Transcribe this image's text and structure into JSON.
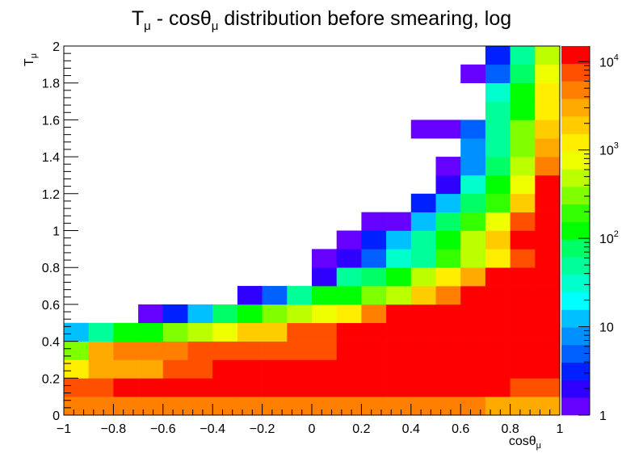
{
  "chart_data": {
    "type": "heatmap",
    "title": "T_μ - cosθ_μ distribution before smearing, log",
    "title_parts": {
      "main1": "T",
      "sub1": "μ",
      "main2": " - cosθ",
      "sub2": "μ",
      "main3": " distribution before smearing, log"
    },
    "xlabel": {
      "main": "cosθ",
      "sub": "μ"
    },
    "ylabel": {
      "main": "T",
      "sub": "μ"
    },
    "xlim": [
      -1,
      1
    ],
    "ylim": [
      0,
      2
    ],
    "x_bins": {
      "start": -1,
      "width": 0.1,
      "count": 20
    },
    "y_bins": {
      "start": 0,
      "width": 0.1,
      "count": 20
    },
    "x_ticks": [
      "−1",
      "−0.8",
      "−0.6",
      "−0.4",
      "−0.2",
      "0",
      "0.2",
      "0.4",
      "0.6",
      "0.8",
      "1"
    ],
    "y_ticks": [
      "0",
      "0.2",
      "0.4",
      "0.6",
      "0.8",
      "1",
      "1.2",
      "1.4",
      "1.6",
      "1.8",
      "2"
    ],
    "colorbar": {
      "scale": "log",
      "range": [
        1,
        15000
      ],
      "labels": [
        {
          "value": 1,
          "base": "1",
          "exp": ""
        },
        {
          "value": 10,
          "base": "10",
          "exp": ""
        },
        {
          "value": 100,
          "base": "10",
          "exp": "2"
        },
        {
          "value": 1000,
          "base": "10",
          "exp": "3"
        },
        {
          "value": 10000,
          "base": "10",
          "exp": "4"
        }
      ],
      "colors": [
        "#6600ff",
        "#3000ff",
        "#0020ff",
        "#0060ff",
        "#0090ff",
        "#00c0ff",
        "#00ffff",
        "#00ffcc",
        "#00ff99",
        "#00ff66",
        "#00ff00",
        "#33ff00",
        "#80ff00",
        "#bbff00",
        "#eeff00",
        "#ffee00",
        "#ffcc00",
        "#ffaa00",
        "#ff8000",
        "#ff5000",
        "#ff0000"
      ]
    },
    "cells": [
      [
        0,
        0,
        5500
      ],
      [
        1,
        0,
        5500
      ],
      [
        2,
        0,
        5500
      ],
      [
        3,
        0,
        5500
      ],
      [
        4,
        0,
        5500
      ],
      [
        5,
        0,
        5500
      ],
      [
        6,
        0,
        5500
      ],
      [
        7,
        0,
        5500
      ],
      [
        8,
        0,
        5500
      ],
      [
        9,
        0,
        5500
      ],
      [
        10,
        0,
        5500
      ],
      [
        11,
        0,
        5500
      ],
      [
        12,
        0,
        5500
      ],
      [
        13,
        0,
        5500
      ],
      [
        14,
        0,
        5500
      ],
      [
        15,
        0,
        5500
      ],
      [
        16,
        0,
        5500
      ],
      [
        17,
        0,
        2500
      ],
      [
        18,
        0,
        2500
      ],
      [
        19,
        0,
        2500
      ],
      [
        0,
        1,
        7000
      ],
      [
        1,
        1,
        7000
      ],
      [
        2,
        1,
        10000
      ],
      [
        3,
        1,
        10000
      ],
      [
        4,
        1,
        10000
      ],
      [
        5,
        1,
        10000
      ],
      [
        6,
        1,
        10000
      ],
      [
        7,
        1,
        10000
      ],
      [
        8,
        1,
        10000
      ],
      [
        9,
        1,
        10000
      ],
      [
        10,
        1,
        10000
      ],
      [
        11,
        1,
        10000
      ],
      [
        12,
        1,
        10000
      ],
      [
        13,
        1,
        10000
      ],
      [
        14,
        1,
        10000
      ],
      [
        15,
        1,
        10000
      ],
      [
        16,
        1,
        10000
      ],
      [
        17,
        1,
        10000
      ],
      [
        18,
        1,
        7000
      ],
      [
        19,
        1,
        7000
      ],
      [
        0,
        2,
        1500
      ],
      [
        1,
        2,
        3000
      ],
      [
        2,
        2,
        3000
      ],
      [
        3,
        2,
        3000
      ],
      [
        4,
        2,
        7000
      ],
      [
        5,
        2,
        7000
      ],
      [
        6,
        2,
        10000
      ],
      [
        7,
        2,
        10000
      ],
      [
        8,
        2,
        10000
      ],
      [
        9,
        2,
        10000
      ],
      [
        10,
        2,
        10000
      ],
      [
        11,
        2,
        14000
      ],
      [
        12,
        2,
        14000
      ],
      [
        13,
        2,
        14000
      ],
      [
        14,
        2,
        14000
      ],
      [
        15,
        2,
        14000
      ],
      [
        16,
        2,
        14000
      ],
      [
        17,
        2,
        14000
      ],
      [
        18,
        2,
        14000
      ],
      [
        19,
        2,
        10000
      ],
      [
        0,
        3,
        250
      ],
      [
        1,
        3,
        2500
      ],
      [
        2,
        3,
        4000
      ],
      [
        3,
        3,
        4000
      ],
      [
        4,
        3,
        5500
      ],
      [
        5,
        3,
        7000
      ],
      [
        6,
        3,
        7000
      ],
      [
        7,
        3,
        7000
      ],
      [
        8,
        3,
        7000
      ],
      [
        9,
        3,
        7000
      ],
      [
        10,
        3,
        7000
      ],
      [
        11,
        3,
        10000
      ],
      [
        12,
        3,
        10000
      ],
      [
        13,
        3,
        10000
      ],
      [
        14,
        3,
        10000
      ],
      [
        15,
        3,
        10000
      ],
      [
        16,
        3,
        14000
      ],
      [
        17,
        3,
        14000
      ],
      [
        18,
        3,
        14000
      ],
      [
        19,
        3,
        14000
      ],
      [
        0,
        4,
        12
      ],
      [
        1,
        4,
        45
      ],
      [
        2,
        4,
        150
      ],
      [
        3,
        4,
        150
      ],
      [
        4,
        4,
        250
      ],
      [
        5,
        4,
        500
      ],
      [
        6,
        4,
        800
      ],
      [
        7,
        4,
        2000
      ],
      [
        8,
        4,
        2000
      ],
      [
        9,
        4,
        7000
      ],
      [
        10,
        4,
        7000
      ],
      [
        11,
        4,
        10000
      ],
      [
        12,
        4,
        10000
      ],
      [
        13,
        4,
        14000
      ],
      [
        14,
        4,
        14000
      ],
      [
        15,
        4,
        14000
      ],
      [
        16,
        4,
        14000
      ],
      [
        17,
        4,
        14000
      ],
      [
        18,
        4,
        14000
      ],
      [
        19,
        4,
        14000
      ],
      [
        3,
        5,
        1
      ],
      [
        4,
        5,
        3
      ],
      [
        5,
        5,
        14
      ],
      [
        6,
        5,
        70
      ],
      [
        7,
        5,
        150
      ],
      [
        8,
        5,
        250
      ],
      [
        9,
        5,
        500
      ],
      [
        10,
        5,
        800
      ],
      [
        11,
        5,
        1500
      ],
      [
        12,
        5,
        4000
      ],
      [
        13,
        5,
        14000
      ],
      [
        14,
        5,
        14000
      ],
      [
        15,
        5,
        14000
      ],
      [
        16,
        5,
        14000
      ],
      [
        17,
        5,
        14000
      ],
      [
        18,
        5,
        14000
      ],
      [
        19,
        5,
        14000
      ],
      [
        7,
        6,
        2
      ],
      [
        8,
        6,
        6
      ],
      [
        9,
        6,
        45
      ],
      [
        10,
        6,
        100
      ],
      [
        11,
        6,
        150
      ],
      [
        12,
        6,
        250
      ],
      [
        13,
        6,
        500
      ],
      [
        14,
        6,
        2000
      ],
      [
        15,
        6,
        5500
      ],
      [
        16,
        6,
        14000
      ],
      [
        17,
        6,
        14000
      ],
      [
        18,
        6,
        14000
      ],
      [
        19,
        6,
        14000
      ],
      [
        10,
        7,
        2
      ],
      [
        11,
        7,
        40
      ],
      [
        12,
        7,
        90
      ],
      [
        13,
        7,
        150
      ],
      [
        14,
        7,
        500
      ],
      [
        15,
        7,
        1500
      ],
      [
        16,
        7,
        3500
      ],
      [
        17,
        7,
        10000
      ],
      [
        18,
        7,
        14000
      ],
      [
        19,
        7,
        14000
      ],
      [
        10,
        8,
        1
      ],
      [
        11,
        8,
        2
      ],
      [
        12,
        8,
        5
      ],
      [
        13,
        8,
        25
      ],
      [
        14,
        8,
        60
      ],
      [
        15,
        8,
        200
      ],
      [
        16,
        8,
        400
      ],
      [
        17,
        8,
        1500
      ],
      [
        18,
        8,
        7000
      ],
      [
        19,
        8,
        14000
      ],
      [
        11,
        9,
        1
      ],
      [
        12,
        9,
        3
      ],
      [
        13,
        9,
        14
      ],
      [
        14,
        9,
        45
      ],
      [
        15,
        9,
        100
      ],
      [
        16,
        9,
        400
      ],
      [
        17,
        9,
        2000
      ],
      [
        18,
        9,
        10000
      ],
      [
        19,
        9,
        14000
      ],
      [
        12,
        10,
        1
      ],
      [
        13,
        10,
        1
      ],
      [
        14,
        10,
        14
      ],
      [
        15,
        10,
        70
      ],
      [
        16,
        10,
        200
      ],
      [
        17,
        10,
        800
      ],
      [
        18,
        10,
        7000
      ],
      [
        19,
        10,
        14000
      ],
      [
        14,
        11,
        3
      ],
      [
        15,
        11,
        15
      ],
      [
        16,
        11,
        80
      ],
      [
        17,
        11,
        200
      ],
      [
        18,
        11,
        2000
      ],
      [
        19,
        11,
        14000
      ],
      [
        15,
        12,
        2
      ],
      [
        16,
        12,
        35
      ],
      [
        17,
        12,
        150
      ],
      [
        18,
        12,
        800
      ],
      [
        19,
        12,
        10000
      ],
      [
        15,
        13,
        1
      ],
      [
        16,
        13,
        9
      ],
      [
        17,
        13,
        80
      ],
      [
        18,
        13,
        500
      ],
      [
        19,
        13,
        4000
      ],
      [
        16,
        14,
        8
      ],
      [
        17,
        14,
        45
      ],
      [
        18,
        14,
        350
      ],
      [
        19,
        14,
        2500
      ],
      [
        14,
        15,
        1
      ],
      [
        15,
        15,
        1
      ],
      [
        16,
        15,
        5
      ],
      [
        17,
        15,
        45
      ],
      [
        18,
        15,
        250
      ],
      [
        19,
        15,
        2000
      ],
      [
        17,
        16,
        40
      ],
      [
        18,
        16,
        150
      ],
      [
        19,
        16,
        1000
      ],
      [
        17,
        17,
        30
      ],
      [
        18,
        17,
        100
      ],
      [
        19,
        17,
        1000
      ],
      [
        16,
        18,
        1
      ],
      [
        17,
        18,
        6
      ],
      [
        18,
        18,
        70
      ],
      [
        19,
        18,
        700
      ],
      [
        17,
        19,
        3
      ],
      [
        18,
        19,
        40
      ],
      [
        19,
        19,
        500
      ]
    ]
  }
}
